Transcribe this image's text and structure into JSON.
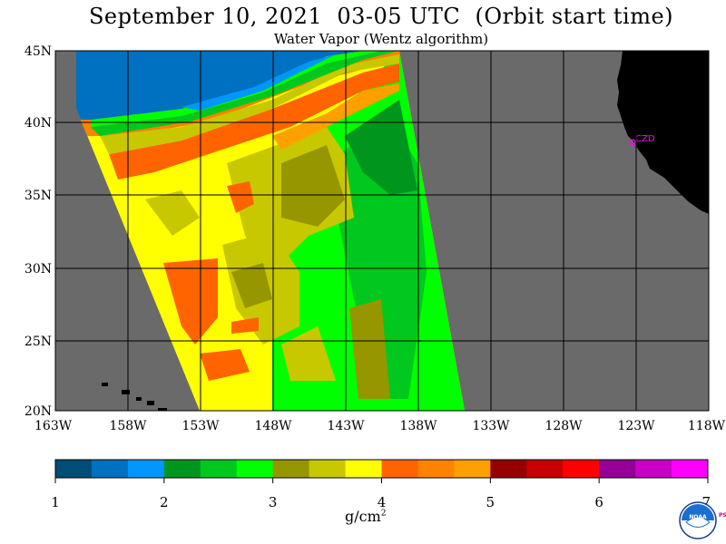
{
  "title": "September 10, 2021  03-05 UTC  (Orbit start time)",
  "subtitle": "Water Vapor (Wentz algorithm)",
  "map": {
    "lat_labels": [
      "45N",
      "40N",
      "35N",
      "30N",
      "25N",
      "20N"
    ],
    "lon_labels": [
      "163W",
      "158W",
      "153W",
      "148W",
      "143W",
      "138W",
      "133W",
      "128W",
      "123W",
      "118W"
    ],
    "station_label": "CZD",
    "colors": {
      "background": "#6a6a6a",
      "land": "#000000",
      "station": "#ff00ff"
    }
  },
  "colorbar": {
    "colors": [
      "#004e78",
      "#0070c0",
      "#0096ff",
      "#00961e",
      "#00c81e",
      "#00ff00",
      "#969600",
      "#c8c800",
      "#ffff00",
      "#ff6400",
      "#ff8200",
      "#ffa000",
      "#960000",
      "#c80000",
      "#ff0000",
      "#960096",
      "#c800c8",
      "#ff00ff"
    ],
    "tick_labels": [
      "1",
      "2",
      "3",
      "4",
      "5",
      "6",
      "7"
    ],
    "unit": "g/cm",
    "unit_superscript": "2"
  },
  "logo": {
    "text": "NOAA",
    "side_text": "PSL"
  }
}
